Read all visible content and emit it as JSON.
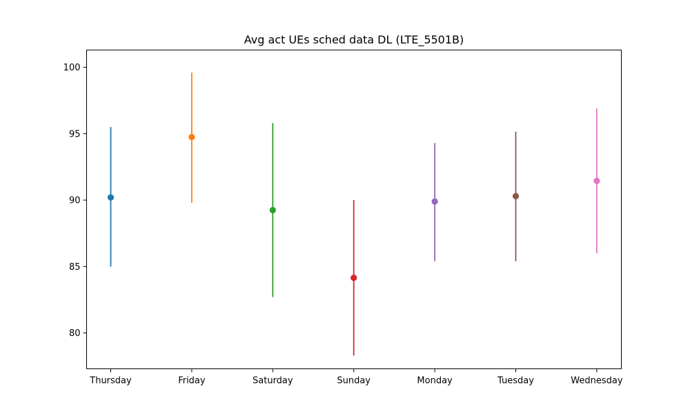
{
  "chart_data": {
    "type": "scatter",
    "title": "Avg act UEs sched data DL (LTE_5501B)",
    "xlabel": "",
    "ylabel": "",
    "categories": [
      "Thursday",
      "Friday",
      "Saturday",
      "Sunday",
      "Monday",
      "Tuesday",
      "Wednesday"
    ],
    "series": [
      {
        "category": "Thursday",
        "mean": 90.2,
        "low": 85.0,
        "high": 95.5,
        "color": "#1f77b4"
      },
      {
        "category": "Friday",
        "mean": 94.75,
        "low": 89.8,
        "high": 99.6,
        "color": "#ff7f0e"
      },
      {
        "category": "Saturday",
        "mean": 89.25,
        "low": 82.7,
        "high": 95.8,
        "color": "#2ca02c"
      },
      {
        "category": "Sunday",
        "mean": 84.15,
        "low": 78.3,
        "high": 90.0,
        "color": "#d62728"
      },
      {
        "category": "Monday",
        "mean": 89.9,
        "low": 85.4,
        "high": 94.3,
        "color": "#9467bd"
      },
      {
        "category": "Tuesday",
        "mean": 90.3,
        "low": 85.4,
        "high": 95.15,
        "color": "#8c564b"
      },
      {
        "category": "Wednesday",
        "mean": 91.45,
        "low": 86.0,
        "high": 96.9,
        "color": "#e377c2"
      }
    ],
    "yticks": [
      80,
      85,
      90,
      95,
      100
    ],
    "ylim": [
      77.3,
      101.3
    ],
    "grid": false,
    "legend": "none"
  }
}
